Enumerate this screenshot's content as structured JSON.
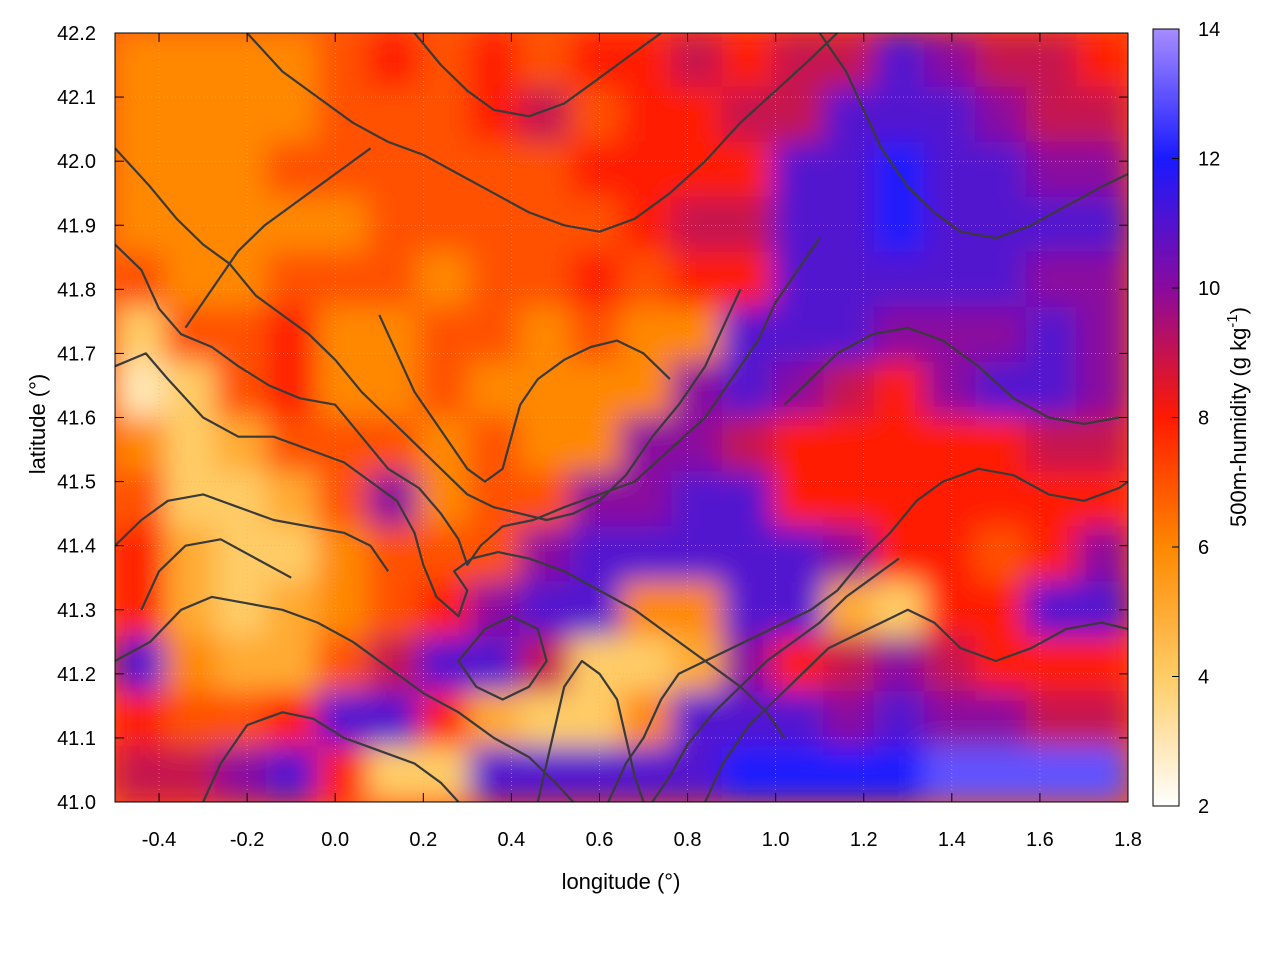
{
  "chart_data": {
    "type": "heatmap",
    "xlabel": "longitude (°)",
    "ylabel": "latitude (°)",
    "colorbar_label_main": "500m-humidity (g kg",
    "colorbar_label_exp": "-1",
    "colorbar_label_close": ")",
    "xlim": [
      -0.5,
      1.8
    ],
    "ylim": [
      41.0,
      42.2
    ],
    "x_ticks": [
      "-0.4",
      "-0.2",
      "0.0",
      "0.2",
      "0.4",
      "0.6",
      "0.8",
      "1.0",
      "1.2",
      "1.4",
      "1.6",
      "1.8"
    ],
    "x_tick_values": [
      -0.4,
      -0.2,
      0.0,
      0.2,
      0.4,
      0.6,
      0.8,
      1.0,
      1.2,
      1.4,
      1.6,
      1.8
    ],
    "y_ticks": [
      "41.0",
      "41.1",
      "41.2",
      "41.3",
      "41.4",
      "41.5",
      "41.6",
      "41.7",
      "41.8",
      "41.9",
      "42.0",
      "42.1",
      "42.2"
    ],
    "y_tick_values": [
      41.0,
      41.1,
      41.2,
      41.3,
      41.4,
      41.5,
      41.6,
      41.7,
      41.8,
      41.9,
      42.0,
      42.1,
      42.2
    ],
    "colorbar_range": [
      2,
      14
    ],
    "colorbar_ticks": [
      "2",
      "4",
      "6",
      "8",
      "10",
      "12",
      "14"
    ],
    "colorbar_tick_values": [
      2,
      4,
      6,
      8,
      10,
      12,
      14
    ],
    "colormap": [
      {
        "value": 2,
        "color": "#ffffff"
      },
      {
        "value": 4,
        "color": "#ffcc66"
      },
      {
        "value": 6,
        "color": "#ff8800"
      },
      {
        "value": 8,
        "color": "#ff1a00"
      },
      {
        "value": 10,
        "color": "#8a0a9e"
      },
      {
        "value": 12,
        "color": "#1a1aff"
      },
      {
        "value": 14,
        "color": "#a68cff"
      }
    ],
    "contour_color": "#3a3a3a",
    "grid": true,
    "humidity_grid": [
      [
        6,
        6,
        6,
        6,
        7,
        8,
        7,
        8,
        7,
        8,
        8,
        9,
        8,
        9,
        9,
        11,
        10,
        9,
        9,
        8
      ],
      [
        6,
        6,
        6,
        6,
        7,
        7,
        7,
        8,
        9,
        7,
        8,
        8,
        9,
        9,
        11,
        11,
        11,
        10,
        9,
        9
      ],
      [
        6,
        6,
        6,
        7,
        7,
        7,
        7,
        7,
        7,
        8,
        8,
        8,
        8,
        11,
        11,
        12,
        11,
        11,
        10,
        10
      ],
      [
        6,
        6,
        6,
        6,
        6,
        7,
        7,
        7,
        7,
        7,
        8,
        9,
        9,
        11,
        11,
        12,
        11,
        11,
        11,
        11
      ],
      [
        7,
        6,
        6,
        7,
        7,
        7,
        6,
        7,
        7,
        8,
        7,
        8,
        8,
        11,
        11,
        11,
        11,
        11,
        10,
        10
      ],
      [
        4,
        7,
        7,
        8,
        6,
        6,
        7,
        7,
        6,
        7,
        6,
        6,
        11,
        11,
        11,
        10,
        10,
        10,
        11,
        10
      ],
      [
        3,
        4,
        7,
        8,
        6,
        6,
        7,
        6,
        6,
        6,
        6,
        10,
        11,
        10,
        9,
        8,
        10,
        11,
        11,
        10
      ],
      [
        6,
        4,
        5,
        7,
        7,
        7,
        6,
        7,
        6,
        6,
        10,
        10,
        9,
        8,
        8,
        8,
        8,
        8,
        9,
        9
      ],
      [
        7,
        4,
        4,
        5,
        7,
        10,
        6,
        7,
        7,
        10,
        10,
        11,
        11,
        8,
        8,
        8,
        8,
        8,
        8,
        8
      ],
      [
        8,
        5,
        4,
        4,
        6,
        7,
        7,
        7,
        10,
        11,
        11,
        11,
        11,
        11,
        10,
        8,
        8,
        7,
        8,
        10
      ],
      [
        8,
        5,
        4,
        5,
        6,
        7,
        8,
        10,
        11,
        11,
        6,
        6,
        11,
        11,
        5,
        4,
        8,
        8,
        11,
        11
      ],
      [
        11,
        6,
        5,
        5,
        7,
        9,
        11,
        11,
        9,
        4,
        4,
        5,
        10,
        8,
        9,
        10,
        9,
        8,
        8,
        8
      ],
      [
        8,
        7,
        7,
        8,
        11,
        11,
        8,
        5,
        4,
        4,
        6,
        11,
        11,
        11,
        10,
        11,
        10,
        10,
        9,
        9
      ],
      [
        9,
        9,
        10,
        11,
        8,
        4,
        4,
        11,
        11,
        11,
        11,
        11,
        12,
        12,
        12,
        12,
        13,
        13,
        13,
        13
      ]
    ],
    "contours": [
      [
        [
          -0.5,
          41.68
        ],
        [
          -0.43,
          41.7
        ],
        [
          -0.38,
          41.66
        ],
        [
          -0.3,
          41.6
        ],
        [
          -0.22,
          41.57
        ],
        [
          -0.14,
          41.57
        ],
        [
          -0.06,
          41.55
        ],
        [
          0.02,
          41.53
        ],
        [
          0.08,
          41.5
        ],
        [
          0.14,
          41.47
        ],
        [
          0.18,
          41.42
        ],
        [
          0.2,
          41.37
        ],
        [
          0.23,
          41.32
        ],
        [
          0.28,
          41.29
        ],
        [
          0.3,
          41.33
        ],
        [
          0.27,
          41.36
        ],
        [
          0.31,
          41.38
        ],
        [
          0.37,
          41.39
        ],
        [
          0.44,
          41.38
        ],
        [
          0.52,
          41.36
        ],
        [
          0.6,
          41.33
        ],
        [
          0.68,
          41.3
        ],
        [
          0.76,
          41.26
        ],
        [
          0.84,
          41.22
        ],
        [
          0.92,
          41.18
        ],
        [
          0.98,
          41.14
        ],
        [
          1.02,
          41.1
        ]
      ],
      [
        [
          -0.5,
          41.87
        ],
        [
          -0.44,
          41.83
        ],
        [
          -0.4,
          41.77
        ],
        [
          -0.35,
          41.73
        ],
        [
          -0.28,
          41.71
        ],
        [
          -0.22,
          41.68
        ],
        [
          -0.15,
          41.65
        ],
        [
          -0.08,
          41.63
        ],
        [
          0.0,
          41.62
        ],
        [
          0.06,
          41.57
        ],
        [
          0.12,
          41.52
        ],
        [
          0.19,
          41.49
        ],
        [
          0.24,
          41.45
        ],
        [
          0.28,
          41.41
        ],
        [
          0.3,
          41.37
        ],
        [
          0.33,
          41.4
        ],
        [
          0.38,
          41.43
        ],
        [
          0.45,
          41.44
        ],
        [
          0.52,
          41.46
        ],
        [
          0.6,
          41.48
        ],
        [
          0.68,
          41.5
        ],
        [
          0.76,
          41.55
        ],
        [
          0.84,
          41.6
        ],
        [
          0.9,
          41.66
        ],
        [
          0.96,
          41.72
        ],
        [
          1.0,
          41.78
        ],
        [
          1.05,
          41.83
        ],
        [
          1.1,
          41.88
        ]
      ],
      [
        [
          -0.5,
          42.02
        ],
        [
          -0.42,
          41.96
        ],
        [
          -0.36,
          41.91
        ],
        [
          -0.3,
          41.87
        ],
        [
          -0.24,
          41.84
        ],
        [
          -0.18,
          41.79
        ],
        [
          -0.12,
          41.76
        ],
        [
          -0.06,
          41.73
        ],
        [
          0.0,
          41.69
        ],
        [
          0.06,
          41.64
        ],
        [
          0.12,
          41.6
        ],
        [
          0.18,
          41.56
        ],
        [
          0.24,
          41.52
        ],
        [
          0.3,
          41.48
        ],
        [
          0.36,
          41.46
        ],
        [
          0.42,
          41.45
        ],
        [
          0.48,
          41.44
        ],
        [
          0.54,
          41.45
        ],
        [
          0.6,
          41.47
        ],
        [
          0.66,
          41.51
        ],
        [
          0.72,
          41.57
        ],
        [
          0.78,
          41.62
        ],
        [
          0.84,
          41.68
        ],
        [
          0.88,
          41.74
        ],
        [
          0.92,
          41.8
        ]
      ],
      [
        [
          -0.2,
          42.2
        ],
        [
          -0.12,
          42.14
        ],
        [
          -0.04,
          42.1
        ],
        [
          0.04,
          42.06
        ],
        [
          0.12,
          42.03
        ],
        [
          0.2,
          42.01
        ],
        [
          0.28,
          41.98
        ],
        [
          0.36,
          41.95
        ],
        [
          0.44,
          41.92
        ],
        [
          0.52,
          41.9
        ],
        [
          0.6,
          41.89
        ],
        [
          0.68,
          41.91
        ],
        [
          0.76,
          41.95
        ],
        [
          0.84,
          42.0
        ],
        [
          0.92,
          42.06
        ],
        [
          1.0,
          42.11
        ],
        [
          1.08,
          42.16
        ],
        [
          1.14,
          42.2
        ]
      ],
      [
        [
          0.18,
          42.2
        ],
        [
          0.24,
          42.15
        ],
        [
          0.3,
          42.11
        ],
        [
          0.36,
          42.08
        ],
        [
          0.44,
          42.07
        ],
        [
          0.52,
          42.09
        ],
        [
          0.58,
          42.12
        ],
        [
          0.64,
          42.15
        ],
        [
          0.7,
          42.18
        ],
        [
          0.74,
          42.2
        ]
      ],
      [
        [
          -0.5,
          41.22
        ],
        [
          -0.42,
          41.25
        ],
        [
          -0.35,
          41.3
        ],
        [
          -0.28,
          41.32
        ],
        [
          -0.2,
          41.31
        ],
        [
          -0.12,
          41.3
        ],
        [
          -0.04,
          41.28
        ],
        [
          0.04,
          41.25
        ],
        [
          0.12,
          41.21
        ],
        [
          0.2,
          41.17
        ],
        [
          0.28,
          41.14
        ],
        [
          0.36,
          41.1
        ],
        [
          0.44,
          41.07
        ],
        [
          0.5,
          41.03
        ],
        [
          0.54,
          41.0
        ]
      ],
      [
        [
          -0.3,
          41.0
        ],
        [
          -0.26,
          41.06
        ],
        [
          -0.2,
          41.12
        ],
        [
          -0.12,
          41.14
        ],
        [
          -0.05,
          41.13
        ],
        [
          0.02,
          41.1
        ],
        [
          0.1,
          41.08
        ],
        [
          0.18,
          41.06
        ],
        [
          0.24,
          41.03
        ],
        [
          0.28,
          41.0
        ]
      ],
      [
        [
          0.62,
          41.0
        ],
        [
          0.66,
          41.06
        ],
        [
          0.7,
          41.1
        ],
        [
          0.74,
          41.16
        ],
        [
          0.78,
          41.2
        ],
        [
          0.84,
          41.22
        ],
        [
          0.9,
          41.24
        ],
        [
          0.96,
          41.26
        ],
        [
          1.02,
          41.28
        ],
        [
          1.08,
          41.3
        ],
        [
          1.14,
          41.33
        ],
        [
          1.2,
          41.38
        ],
        [
          1.26,
          41.42
        ],
        [
          1.32,
          41.47
        ],
        [
          1.38,
          41.5
        ],
        [
          1.46,
          41.52
        ],
        [
          1.54,
          41.51
        ],
        [
          1.62,
          41.48
        ],
        [
          1.7,
          41.47
        ],
        [
          1.78,
          41.49
        ],
        [
          1.8,
          41.5
        ]
      ],
      [
        [
          0.84,
          41.0
        ],
        [
          0.88,
          41.06
        ],
        [
          0.94,
          41.12
        ],
        [
          1.0,
          41.16
        ],
        [
          1.06,
          41.2
        ],
        [
          1.12,
          41.24
        ],
        [
          1.18,
          41.26
        ],
        [
          1.24,
          41.28
        ],
        [
          1.3,
          41.3
        ],
        [
          1.36,
          41.28
        ],
        [
          1.42,
          41.24
        ],
        [
          1.5,
          41.22
        ],
        [
          1.58,
          41.24
        ],
        [
          1.66,
          41.27
        ],
        [
          1.74,
          41.28
        ],
        [
          1.8,
          41.27
        ]
      ],
      [
        [
          0.72,
          41.0
        ],
        [
          0.76,
          41.04
        ],
        [
          0.8,
          41.09
        ],
        [
          0.86,
          41.14
        ],
        [
          0.92,
          41.18
        ],
        [
          0.98,
          41.22
        ],
        [
          1.04,
          41.25
        ],
        [
          1.1,
          41.28
        ],
        [
          1.16,
          41.32
        ],
        [
          1.22,
          41.35
        ],
        [
          1.28,
          41.38
        ]
      ],
      [
        [
          1.1,
          42.2
        ],
        [
          1.16,
          42.14
        ],
        [
          1.2,
          42.08
        ],
        [
          1.24,
          42.02
        ],
        [
          1.3,
          41.96
        ],
        [
          1.36,
          41.92
        ],
        [
          1.42,
          41.89
        ],
        [
          1.5,
          41.88
        ],
        [
          1.58,
          41.9
        ],
        [
          1.66,
          41.93
        ],
        [
          1.74,
          41.96
        ],
        [
          1.8,
          41.98
        ]
      ],
      [
        [
          1.02,
          41.62
        ],
        [
          1.08,
          41.66
        ],
        [
          1.14,
          41.7
        ],
        [
          1.22,
          41.73
        ],
        [
          1.3,
          41.74
        ],
        [
          1.38,
          41.72
        ],
        [
          1.46,
          41.68
        ],
        [
          1.54,
          41.63
        ],
        [
          1.62,
          41.6
        ],
        [
          1.7,
          41.59
        ],
        [
          1.78,
          41.6
        ]
      ],
      [
        [
          -0.34,
          41.74
        ],
        [
          -0.28,
          41.8
        ],
        [
          -0.22,
          41.86
        ],
        [
          -0.16,
          41.9
        ],
        [
          -0.1,
          41.93
        ],
        [
          -0.04,
          41.96
        ],
        [
          0.02,
          41.99
        ],
        [
          0.08,
          42.02
        ]
      ],
      [
        [
          0.1,
          41.76
        ],
        [
          0.14,
          41.7
        ],
        [
          0.18,
          41.64
        ],
        [
          0.22,
          41.6
        ],
        [
          0.26,
          41.56
        ],
        [
          0.3,
          41.52
        ],
        [
          0.34,
          41.5
        ],
        [
          0.38,
          41.52
        ],
        [
          0.4,
          41.57
        ],
        [
          0.42,
          41.62
        ],
        [
          0.46,
          41.66
        ],
        [
          0.52,
          41.69
        ],
        [
          0.58,
          41.71
        ],
        [
          0.64,
          41.72
        ],
        [
          0.7,
          41.7
        ],
        [
          0.76,
          41.66
        ]
      ],
      [
        [
          -0.5,
          41.4
        ],
        [
          -0.44,
          41.44
        ],
        [
          -0.38,
          41.47
        ],
        [
          -0.3,
          41.48
        ],
        [
          -0.22,
          41.46
        ],
        [
          -0.14,
          41.44
        ],
        [
          -0.06,
          41.43
        ],
        [
          0.02,
          41.42
        ],
        [
          0.08,
          41.4
        ],
        [
          0.12,
          41.36
        ]
      ],
      [
        [
          -0.44,
          41.3
        ],
        [
          -0.4,
          41.36
        ],
        [
          -0.34,
          41.4
        ],
        [
          -0.26,
          41.41
        ],
        [
          -0.18,
          41.38
        ],
        [
          -0.1,
          41.35
        ]
      ],
      [
        [
          0.46,
          41.0
        ],
        [
          0.48,
          41.06
        ],
        [
          0.5,
          41.12
        ],
        [
          0.52,
          41.18
        ],
        [
          0.56,
          41.22
        ],
        [
          0.6,
          41.2
        ],
        [
          0.64,
          41.16
        ],
        [
          0.66,
          41.1
        ],
        [
          0.68,
          41.04
        ],
        [
          0.7,
          41.0
        ]
      ],
      [
        [
          0.28,
          41.22
        ],
        [
          0.32,
          41.18
        ],
        [
          0.38,
          41.16
        ],
        [
          0.44,
          41.18
        ],
        [
          0.48,
          41.22
        ],
        [
          0.46,
          41.27
        ],
        [
          0.4,
          41.29
        ],
        [
          0.34,
          41.27
        ],
        [
          0.28,
          41.22
        ]
      ]
    ]
  }
}
